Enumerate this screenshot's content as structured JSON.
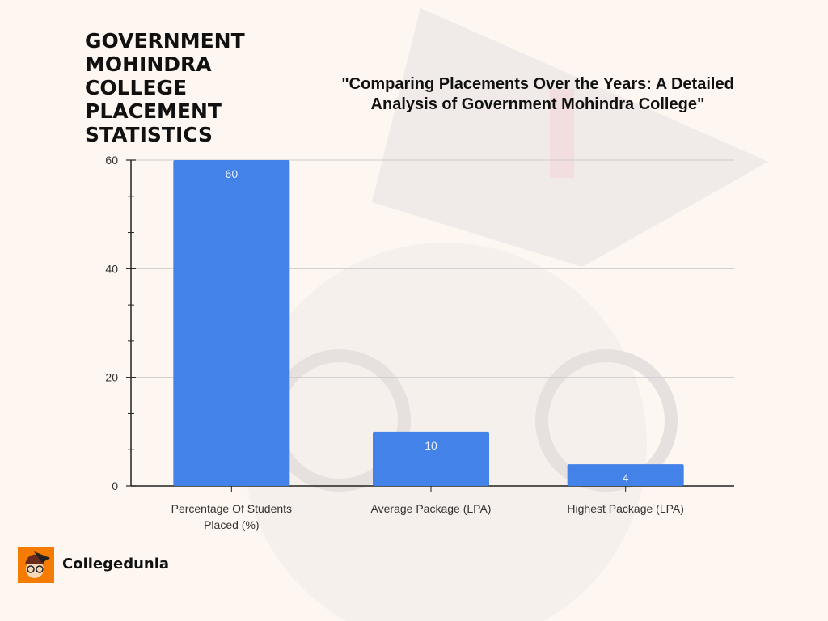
{
  "page_title": "GOVERNMENT MOHINDRA COLLEGE PLACEMENT STATISTICS",
  "brand": {
    "name": "Collegedunia",
    "logo_icon": "student-mascot-icon",
    "logo_color": "#f57c00"
  },
  "chart_data": {
    "type": "bar",
    "title": "\"Comparing Placements Over the Years: A Detailed Analysis of  Government Mohindra College\"",
    "categories": [
      "Percentage Of Students Placed (%)",
      "Average Package (LPA)",
      "Highest Package (LPA)"
    ],
    "category_lines": [
      [
        "Percentage Of Students",
        "Placed (%)"
      ],
      [
        "Average Package (LPA)"
      ],
      [
        "Highest Package (LPA)"
      ]
    ],
    "values": [
      60,
      10,
      4
    ],
    "data_labels": [
      "60",
      "10",
      "4"
    ],
    "ylim": [
      0,
      60
    ],
    "yticks": [
      0,
      20,
      40,
      60
    ],
    "ytick_labels": [
      "0",
      "20",
      "40",
      "60"
    ],
    "xlabel": "",
    "ylabel": "",
    "grid": true,
    "bar_color": "#4382e8"
  }
}
